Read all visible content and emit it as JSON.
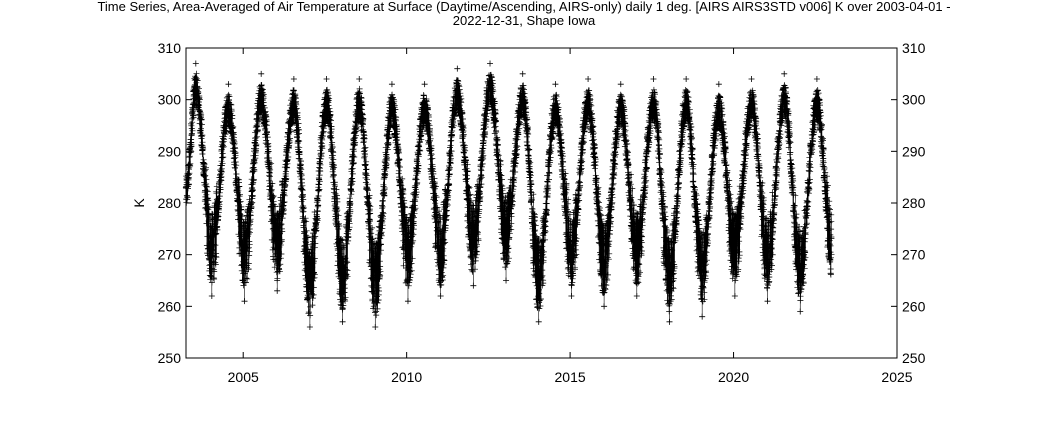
{
  "chart_data": {
    "type": "line",
    "title_line1": "Time Series, Area-Averaged of Air Temperature at Surface (Daytime/Ascending, AIRS-only) daily 1 deg. [AIRS AIRS3STD v006] K over 2003-04-01 -",
    "title_line2": "2022-12-31, Shape Iowa",
    "xlabel": "",
    "ylabel": "K",
    "xlim": [
      2003.25,
      2025
    ],
    "ylim": [
      250,
      310
    ],
    "xticks": [
      2005,
      2010,
      2015,
      2020,
      2025
    ],
    "yticks": [
      250,
      260,
      270,
      280,
      290,
      300,
      310
    ],
    "grid": false,
    "marker": "+",
    "series": [
      {
        "name": "",
        "x_start": "2003-04-01",
        "x_end": "2022-12-31",
        "summer_peaks": [
          {
            "year": 2003,
            "max": 307
          },
          {
            "year": 2004,
            "max": 303
          },
          {
            "year": 2005,
            "max": 305
          },
          {
            "year": 2006,
            "max": 304
          },
          {
            "year": 2007,
            "max": 304
          },
          {
            "year": 2008,
            "max": 304
          },
          {
            "year": 2009,
            "max": 303
          },
          {
            "year": 2010,
            "max": 303
          },
          {
            "year": 2011,
            "max": 306
          },
          {
            "year": 2012,
            "max": 307
          },
          {
            "year": 2013,
            "max": 305
          },
          {
            "year": 2014,
            "max": 303
          },
          {
            "year": 2015,
            "max": 304
          },
          {
            "year": 2016,
            "max": 303
          },
          {
            "year": 2017,
            "max": 304
          },
          {
            "year": 2018,
            "max": 304
          },
          {
            "year": 2019,
            "max": 303
          },
          {
            "year": 2020,
            "max": 304
          },
          {
            "year": 2021,
            "max": 305
          },
          {
            "year": 2022,
            "max": 304
          }
        ],
        "winter_troughs": [
          {
            "year": 2004,
            "min": 262
          },
          {
            "year": 2005,
            "min": 261
          },
          {
            "year": 2006,
            "min": 263
          },
          {
            "year": 2007,
            "min": 256
          },
          {
            "year": 2008,
            "min": 257
          },
          {
            "year": 2009,
            "min": 256
          },
          {
            "year": 2010,
            "min": 261
          },
          {
            "year": 2011,
            "min": 262
          },
          {
            "year": 2012,
            "min": 264
          },
          {
            "year": 2013,
            "min": 265
          },
          {
            "year": 2014,
            "min": 257
          },
          {
            "year": 2015,
            "min": 262
          },
          {
            "year": 2016,
            "min": 260
          },
          {
            "year": 2017,
            "min": 262
          },
          {
            "year": 2018,
            "min": 257
          },
          {
            "year": 2019,
            "min": 258
          },
          {
            "year": 2020,
            "min": 262
          },
          {
            "year": 2021,
            "min": 261
          },
          {
            "year": 2022,
            "min": 259
          }
        ]
      }
    ]
  }
}
